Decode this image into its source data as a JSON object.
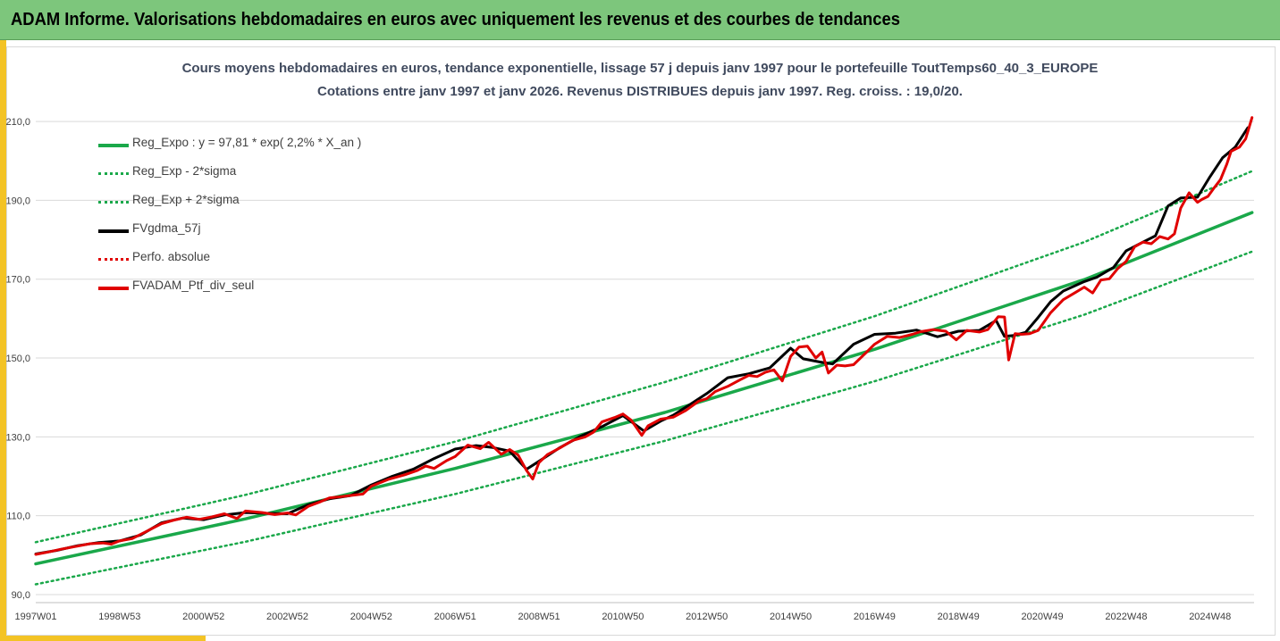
{
  "header": {
    "title": "ADAM Informe. Valorisations hebdomadaires en euros avec uniquement les revenus et des courbes de tendances"
  },
  "colors": {
    "header_bg": "#7dc67c",
    "accent": "#f3c325",
    "reg_expo": "#1aa84a",
    "fvgdma": "#000000",
    "perfo": "#e00000",
    "fvadam": "#e00000"
  },
  "chart_data": {
    "type": "line",
    "title_line1": "Cours moyens hebdomadaires  en euros, tendance exponentielle, lissage 57 j depuis janv 1997 pour le portefeuille ToutTemps60_40_3_EUROPE",
    "title_line2": "Cotations entre janv 1997 et janv 2026. Revenus DISTRIBUES depuis janv 1997. Reg. croiss. : 19,0/20.",
    "ylim": [
      90,
      215
    ],
    "y_ticks": [
      "90,0",
      "110,0",
      "130,0",
      "150,0",
      "170,0",
      "190,0",
      "210,0"
    ],
    "y_tick_values": [
      90,
      110,
      130,
      150,
      170,
      190,
      210
    ],
    "x_range": [
      1997.0,
      2026.05
    ],
    "x_ticks": [
      "1997W01",
      "1998W53",
      "2000W52",
      "2002W52",
      "2004W52",
      "2006W51",
      "2008W51",
      "2010W50",
      "2012W50",
      "2014W50",
      "2016W49",
      "2018W49",
      "2020W49",
      "2022W48",
      "2024W48"
    ],
    "x_tick_values": [
      1997.0,
      1999.0,
      2001.0,
      2003.0,
      2005.0,
      2007.0,
      2009.0,
      2011.0,
      2013.0,
      2015.0,
      2017.0,
      2019.0,
      2021.0,
      2023.0,
      2025.0
    ],
    "grid": "horizontal",
    "legend_position": "top-left",
    "series": [
      {
        "name": "Reg_Expo : y = 97,81 * exp( 2,2% *  X_an )",
        "style": "solid",
        "color": "#1aa84a",
        "x": [
          1997.0,
          2002.0,
          2007.0,
          2012.0,
          2017.0,
          2022.0,
          2026.0
        ],
        "y": [
          97.8,
          109.2,
          122.0,
          136.2,
          152.2,
          169.9,
          186.9
        ]
      },
      {
        "name": "Reg_Exp - 2*sigma",
        "style": "dotted",
        "color": "#1aa84a",
        "x": [
          1997.0,
          2002.0,
          2007.0,
          2012.0,
          2017.0,
          2022.0,
          2026.0
        ],
        "y": [
          92.6,
          103.4,
          115.5,
          129.0,
          144.1,
          161.0,
          177.0
        ]
      },
      {
        "name": "Reg_Exp + 2*sigma",
        "style": "dotted",
        "color": "#1aa84a",
        "x": [
          1997.0,
          2002.0,
          2007.0,
          2012.0,
          2017.0,
          2022.0,
          2026.0
        ],
        "y": [
          103.3,
          115.3,
          128.8,
          143.9,
          160.6,
          179.4,
          197.4
        ]
      },
      {
        "name": "FVgdma_57j",
        "style": "solid",
        "color": "#000000",
        "x": [
          1997.0,
          1997.5,
          1998.0,
          1998.5,
          1999.0,
          1999.5,
          2000.0,
          2000.5,
          2001.0,
          2001.5,
          2002.0,
          2002.5,
          2003.0,
          2003.5,
          2004.0,
          2004.5,
          2005.0,
          2005.5,
          2006.0,
          2006.5,
          2007.0,
          2007.5,
          2007.9,
          2008.3,
          2008.7,
          2009.0,
          2009.5,
          2010.0,
          2010.5,
          2011.0,
          2011.5,
          2011.9,
          2012.2,
          2012.6,
          2013.0,
          2013.5,
          2014.0,
          2014.5,
          2015.0,
          2015.3,
          2015.7,
          2016.0,
          2016.5,
          2017.0,
          2017.5,
          2018.0,
          2018.5,
          2019.0,
          2019.5,
          2019.9,
          2020.1,
          2020.3,
          2020.6,
          2020.9,
          2021.2,
          2021.5,
          2022.0,
          2022.3,
          2022.7,
          2023.0,
          2023.4,
          2023.7,
          2024.0,
          2024.3,
          2024.7,
          2025.0,
          2025.3,
          2025.6,
          2025.9
        ],
        "y": [
          100.3,
          101.2,
          102.4,
          103.2,
          103.6,
          105.1,
          108.2,
          109.4,
          109.0,
          110.2,
          110.8,
          110.6,
          110.5,
          112.8,
          114.3,
          115.1,
          117.8,
          120.0,
          121.8,
          124.5,
          126.9,
          127.8,
          127.3,
          126.4,
          121.8,
          123.8,
          127.3,
          130.2,
          132.6,
          135.4,
          131.5,
          134.0,
          135.5,
          138.2,
          141.0,
          145.0,
          146.0,
          147.5,
          152.5,
          149.8,
          149.0,
          148.5,
          153.5,
          156.0,
          156.3,
          157.1,
          155.4,
          156.8,
          157.0,
          159.5,
          155.5,
          155.7,
          156.5,
          160.3,
          164.3,
          167.0,
          169.4,
          170.5,
          173.0,
          177.2,
          179.4,
          181.0,
          188.6,
          190.6,
          190.8,
          196.0,
          200.8,
          203.5,
          208.4
        ]
      },
      {
        "name": "Perfo. absolue",
        "style": "dotted",
        "color": "#e00000",
        "x": [],
        "y": []
      },
      {
        "name": "FVADAM_Ptf_div_seul",
        "style": "solid",
        "color": "#e00000",
        "x": [
          1997.0,
          1997.3,
          1997.6,
          1998.0,
          1998.3,
          1998.6,
          1998.8,
          1999.0,
          1999.3,
          1999.6,
          2000.0,
          2000.3,
          2000.6,
          2000.9,
          2001.2,
          2001.5,
          2001.8,
          2002.0,
          2002.4,
          2002.7,
          2003.0,
          2003.2,
          2003.5,
          2003.8,
          2004.0,
          2004.4,
          2004.8,
          2005.0,
          2005.4,
          2005.8,
          2006.1,
          2006.3,
          2006.5,
          2006.8,
          2007.0,
          2007.3,
          2007.6,
          2007.8,
          2008.1,
          2008.3,
          2008.5,
          2008.7,
          2008.85,
          2009.0,
          2009.2,
          2009.5,
          2009.8,
          2010.1,
          2010.3,
          2010.5,
          2010.8,
          2011.0,
          2011.2,
          2011.45,
          2011.6,
          2011.9,
          2012.2,
          2012.5,
          2012.8,
          2013.0,
          2013.2,
          2013.5,
          2013.8,
          2014.0,
          2014.2,
          2014.4,
          2014.6,
          2014.8,
          2015.0,
          2015.2,
          2015.4,
          2015.6,
          2015.75,
          2015.9,
          2016.1,
          2016.3,
          2016.5,
          2016.8,
          2017.0,
          2017.3,
          2017.6,
          2017.9,
          2018.1,
          2018.4,
          2018.7,
          2018.95,
          2019.2,
          2019.5,
          2019.7,
          2019.95,
          2020.1,
          2020.2,
          2020.35,
          2020.5,
          2020.7,
          2020.9,
          2021.2,
          2021.5,
          2021.8,
          2022.0,
          2022.2,
          2022.4,
          2022.6,
          2022.8,
          2023.0,
          2023.2,
          2023.4,
          2023.6,
          2023.8,
          2024.0,
          2024.15,
          2024.3,
          2024.5,
          2024.7,
          2024.8,
          2024.95,
          2025.1,
          2025.25,
          2025.4,
          2025.5,
          2025.7,
          2025.85,
          2026.0
        ],
        "y": [
          100.2,
          100.8,
          101.5,
          102.3,
          102.9,
          103.1,
          102.8,
          103.6,
          104.2,
          105.8,
          108.0,
          108.9,
          109.6,
          109.1,
          109.7,
          110.5,
          109.3,
          111.2,
          110.8,
          110.3,
          110.7,
          110.2,
          112.4,
          113.6,
          114.5,
          115.0,
          115.5,
          117.5,
          119.2,
          120.4,
          121.5,
          122.6,
          122.0,
          124.0,
          125.0,
          127.9,
          127.0,
          128.6,
          125.6,
          126.8,
          125.4,
          121.5,
          119.3,
          123.5,
          125.5,
          127.2,
          129.1,
          130.0,
          131.2,
          133.8,
          134.9,
          135.8,
          134.2,
          130.4,
          132.8,
          134.5,
          135.0,
          136.7,
          139.0,
          139.7,
          141.5,
          142.8,
          144.5,
          145.6,
          145.3,
          146.4,
          147.0,
          144.2,
          150.4,
          152.8,
          153.0,
          150.0,
          151.5,
          146.2,
          148.2,
          148.0,
          148.3,
          151.4,
          153.5,
          155.5,
          155.2,
          156.0,
          156.7,
          157.2,
          156.8,
          154.6,
          157.0,
          156.6,
          157.2,
          160.5,
          160.4,
          149.5,
          156.2,
          156.0,
          156.2,
          157.0,
          161.5,
          164.8,
          166.7,
          168.0,
          166.5,
          169.8,
          170.1,
          172.7,
          174.5,
          178.2,
          179.4,
          179.0,
          180.8,
          180.2,
          181.5,
          188.0,
          191.9,
          189.5,
          190.2,
          191.0,
          193.2,
          195.3,
          199.2,
          202.4,
          203.5,
          205.6,
          211.0
        ]
      }
    ]
  }
}
